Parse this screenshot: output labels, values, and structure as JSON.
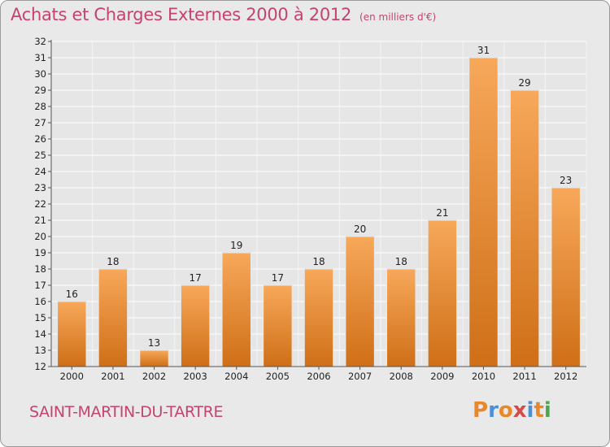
{
  "title": "Achats et Charges Externes 2000 à 2012",
  "subtitle": "(en milliers d'€)",
  "commune": "SAINT-MARTIN-DU-TARTRE",
  "logo": {
    "text": "Proxiti",
    "colors": [
      "#e8882a",
      "#4d8fd6",
      "#e8882a",
      "#d64a4a",
      "#4d8fd6",
      "#e8882a",
      "#4aa84a"
    ]
  },
  "colors": {
    "bar_light": "#f7a85a",
    "bar_dark": "#cf6f17",
    "title": "#c4446d",
    "grid": "#ffffff",
    "background": "#e9e9e9"
  },
  "chart_data": {
    "type": "bar",
    "categories": [
      "2000",
      "2001",
      "2002",
      "2003",
      "2004",
      "2005",
      "2006",
      "2007",
      "2008",
      "2009",
      "2010",
      "2011",
      "2012"
    ],
    "values": [
      16,
      18,
      13,
      17,
      19,
      17,
      18,
      20,
      18,
      21,
      31,
      29,
      23
    ],
    "ylim": [
      12,
      32
    ],
    "yticks": [
      12,
      13,
      14,
      15,
      16,
      17,
      18,
      19,
      20,
      21,
      22,
      23,
      24,
      25,
      26,
      27,
      28,
      29,
      30,
      31,
      32
    ],
    "grid": true,
    "xlabel": "",
    "ylabel": ""
  }
}
